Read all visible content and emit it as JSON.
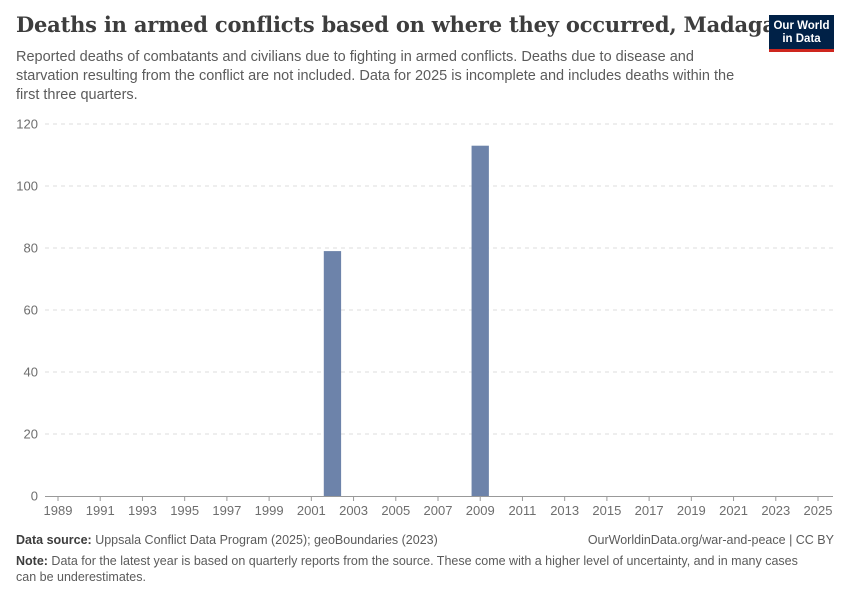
{
  "title": "Deaths in armed conflicts based on where they occurred, Madagascar",
  "subtitle": "Reported deaths of combatants and civilians due to fighting in armed conflicts. Deaths due to disease and starvation resulting from the conflict are not included. Data for 2025 is incomplete and includes deaths within the first three quarters.",
  "logo": {
    "line1": "Our World",
    "line2": "in Data",
    "bg": "#002147",
    "accent": "#ce261e"
  },
  "footer": {
    "source_label": "Data source:",
    "source_text": " Uppsala Conflict Data Program (2025); geoBoundaries (2023)",
    "license": "OurWorldinData.org/war-and-peace | CC BY",
    "note_label": "Note:",
    "note_text": " Data for the latest year is based on quarterly reports from the source. These come with a higher level of uncertainty, and in many cases can be underestimates."
  },
  "chart_data": {
    "type": "bar",
    "title": "Deaths in armed conflicts based on where they occurred, Madagascar",
    "xlabel": "",
    "ylabel": "",
    "x_range": [
      1989,
      2025
    ],
    "ylim": [
      0,
      120
    ],
    "y_ticks": [
      0,
      20,
      40,
      60,
      80,
      100,
      120
    ],
    "x_ticks": [
      1989,
      1991,
      1993,
      1995,
      1997,
      1999,
      2001,
      2003,
      2005,
      2007,
      2009,
      2011,
      2013,
      2015,
      2017,
      2019,
      2021,
      2023,
      2025
    ],
    "grid": true,
    "bar_color": "#6d83aa",
    "bars": [
      {
        "year": 2002,
        "value": 79
      },
      {
        "year": 2009,
        "value": 113
      }
    ]
  }
}
